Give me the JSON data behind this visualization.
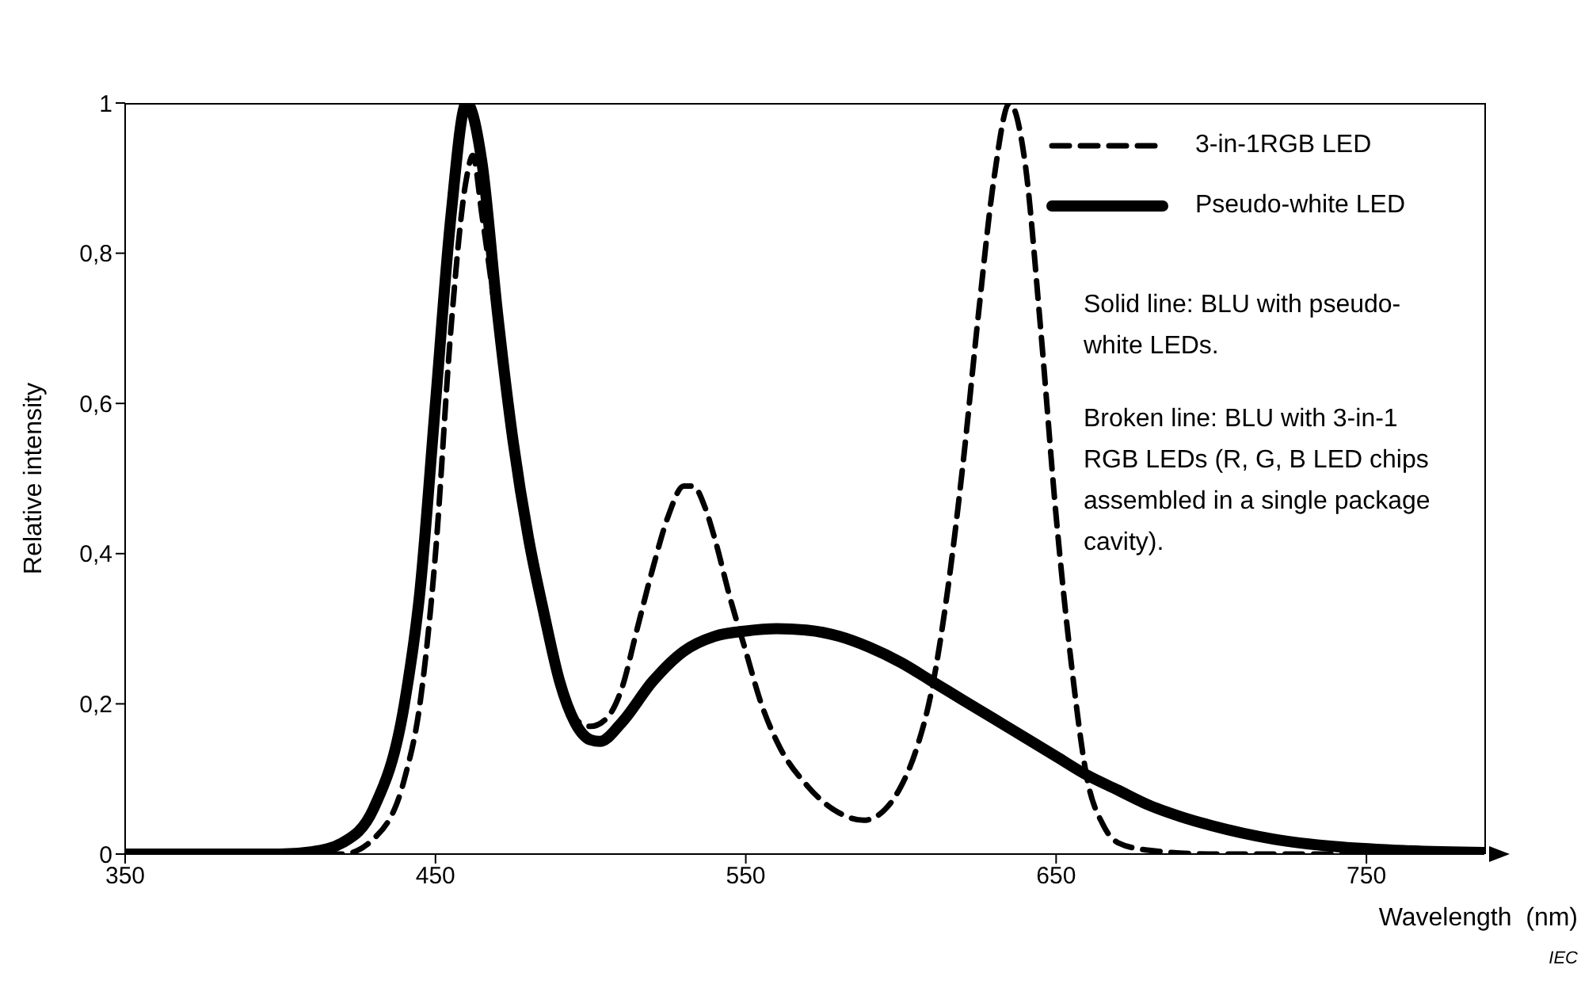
{
  "chart_data": {
    "type": "line",
    "xlabel": "Wavelength  (nm)",
    "ylabel": "Relative intensity",
    "xlim": [
      350,
      788
    ],
    "xticks": [
      350,
      450,
      550,
      650,
      750
    ],
    "ylim": [
      0,
      1
    ],
    "yticks": [
      0,
      {
        "value": 0.2,
        "label": "0,2"
      },
      {
        "value": 0.4,
        "label": "0,4"
      },
      {
        "value": 0.6,
        "label": "0,6"
      },
      {
        "value": 0.8,
        "label": "0,8"
      },
      1
    ],
    "legend": "top right",
    "series": [
      {
        "name": "3-in-1RGB LED",
        "color": "#000000",
        "line_style": "dashed",
        "x": [
          350,
          420,
          430,
          440,
          445,
          450,
          455,
          460,
          462,
          465,
          470,
          475,
          480,
          485,
          490,
          495,
          500,
          505,
          510,
          515,
          520,
          525,
          530,
          533,
          537,
          540,
          545,
          550,
          555,
          560,
          570,
          580,
          588,
          595,
          600,
          605,
          610,
          615,
          620,
          625,
          630,
          635,
          640,
          645,
          650,
          655,
          660,
          665,
          670,
          680,
          700,
          788
        ],
        "values": [
          0,
          0,
          0.02,
          0.1,
          0.2,
          0.4,
          0.7,
          0.9,
          0.93,
          0.85,
          0.7,
          0.55,
          0.42,
          0.31,
          0.23,
          0.18,
          0.17,
          0.18,
          0.22,
          0.3,
          0.38,
          0.45,
          0.49,
          0.49,
          0.46,
          0.42,
          0.34,
          0.27,
          0.2,
          0.15,
          0.09,
          0.055,
          0.045,
          0.06,
          0.09,
          0.14,
          0.22,
          0.35,
          0.52,
          0.72,
          0.9,
          1,
          0.92,
          0.7,
          0.45,
          0.25,
          0.1,
          0.04,
          0.015,
          0.005,
          0,
          0
        ]
      },
      {
        "name": "Pseudo-white LED",
        "color": "#000000",
        "line_style": "solid",
        "x": [
          350,
          400,
          410,
          420,
          430,
          440,
          445,
          450,
          455,
          460,
          465,
          470,
          475,
          480,
          485,
          490,
          495,
          500,
          503,
          510,
          520,
          530,
          540,
          550,
          560,
          570,
          580,
          590,
          600,
          610,
          620,
          630,
          640,
          650,
          660,
          670,
          680,
          690,
          700,
          720,
          740,
          760,
          788
        ],
        "values": [
          0,
          0,
          0.003,
          0.015,
          0.06,
          0.2,
          0.35,
          0.6,
          0.85,
          1,
          0.92,
          0.72,
          0.55,
          0.42,
          0.32,
          0.23,
          0.175,
          0.152,
          0.15,
          0.175,
          0.23,
          0.27,
          0.29,
          0.297,
          0.3,
          0.298,
          0.29,
          0.275,
          0.255,
          0.23,
          0.205,
          0.18,
          0.155,
          0.13,
          0.105,
          0.085,
          0.065,
          0.05,
          0.038,
          0.02,
          0.01,
          0.005,
          0.002
        ]
      }
    ],
    "annotations": [
      "Solid line: BLU with pseudo-white LEDs.",
      "Broken line: BLU with 3-in-1 RGB LEDs (R, G, B LED chips assembled in a single package cavity).",
      "IEC"
    ]
  }
}
